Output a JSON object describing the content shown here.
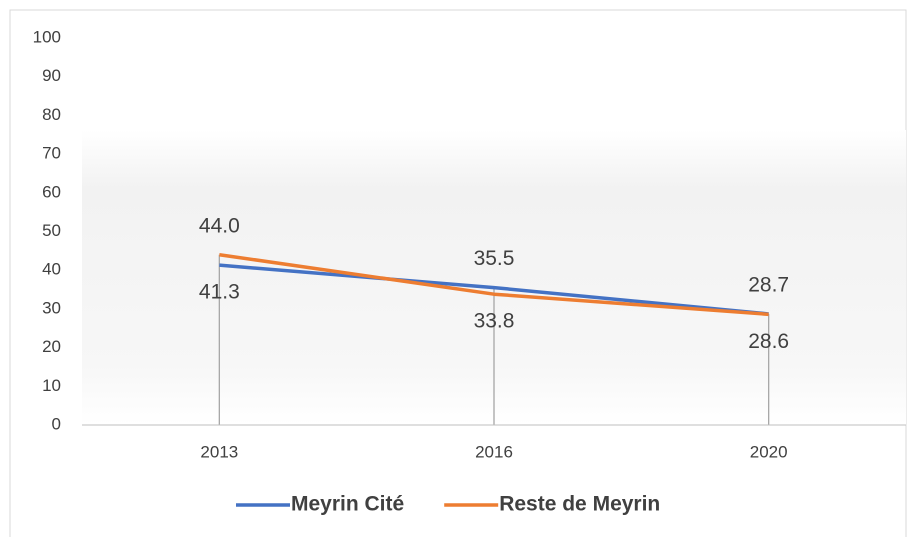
{
  "chart_data": {
    "type": "line",
    "categories": [
      "2013",
      "2016",
      "2020"
    ],
    "series": [
      {
        "name": "Meyrin Cité",
        "color": "#4472c4",
        "values": [
          41.3,
          35.5,
          28.7
        ],
        "value_labels": [
          "41.3",
          "35.5",
          "28.7"
        ]
      },
      {
        "name": "Reste de Meyrin",
        "color": "#ed7d31",
        "values": [
          44.0,
          33.8,
          28.6
        ],
        "value_labels": [
          "44.0",
          "33.8",
          "28.6"
        ]
      }
    ],
    "ylim": [
      0,
      100
    ],
    "yticks": [
      0,
      10,
      20,
      30,
      40,
      50,
      60,
      70,
      80,
      90,
      100
    ],
    "grid": false,
    "legend": "bottom"
  }
}
